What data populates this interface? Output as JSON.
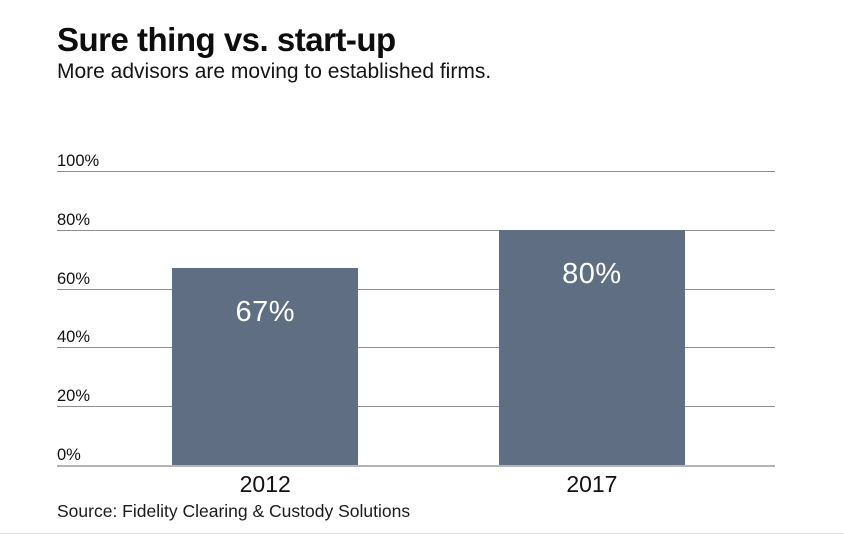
{
  "chart_data": {
    "type": "bar",
    "title": "Sure thing vs. start-up",
    "subtitle": "More advisors are moving to established firms.",
    "categories": [
      "2012",
      "2017"
    ],
    "values": [
      67,
      80
    ],
    "value_labels": [
      "67%",
      "80%"
    ],
    "y_ticks": [
      0,
      20,
      40,
      60,
      80,
      100
    ],
    "y_tick_labels": [
      "0%",
      "20%",
      "40%",
      "60%",
      "80%",
      "100%"
    ],
    "ylim": [
      0,
      100
    ],
    "xlabel": "",
    "ylabel": "",
    "grid": "horizontal",
    "legend": "none",
    "bar_color": "#5f6e82",
    "value_label_color": "#ffffff",
    "source": "Source: Fidelity Clearing & Custody Solutions"
  }
}
